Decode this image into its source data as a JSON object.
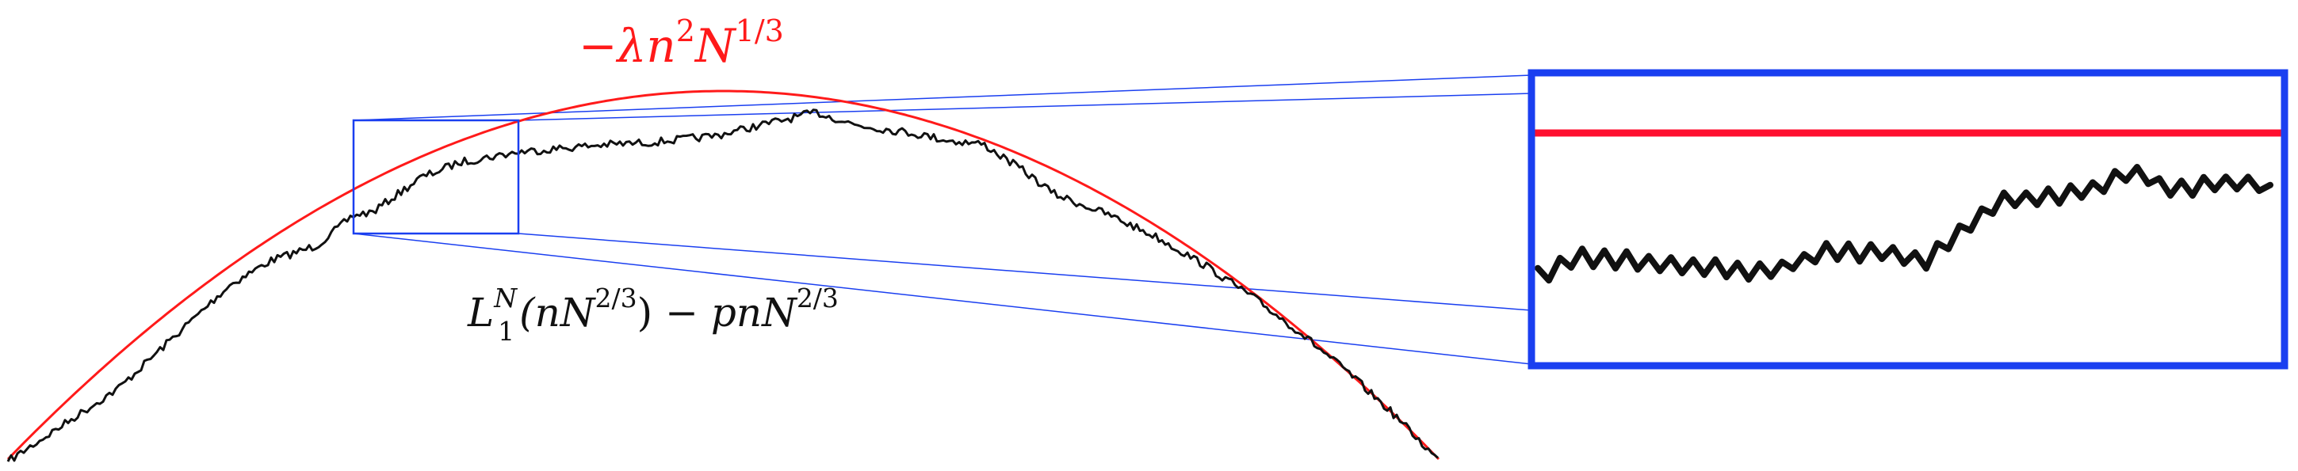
{
  "labels": {
    "parabola": {
      "lead": "−λn",
      "exp1": "2",
      "mid": "N",
      "exp2": "1/3"
    },
    "process": {
      "L": "L",
      "sup": "N",
      "sub": "1",
      "arg_open": "(nN",
      "arg_exp": "2/3",
      "arg_close": ")",
      "minus": " − pnN",
      "tail_exp": "2/3"
    }
  },
  "colors": {
    "parabola": "#ff1a1a",
    "zoom": "#1a3ff0",
    "path": "#111111",
    "zoom_red": "#ff1030"
  }
}
